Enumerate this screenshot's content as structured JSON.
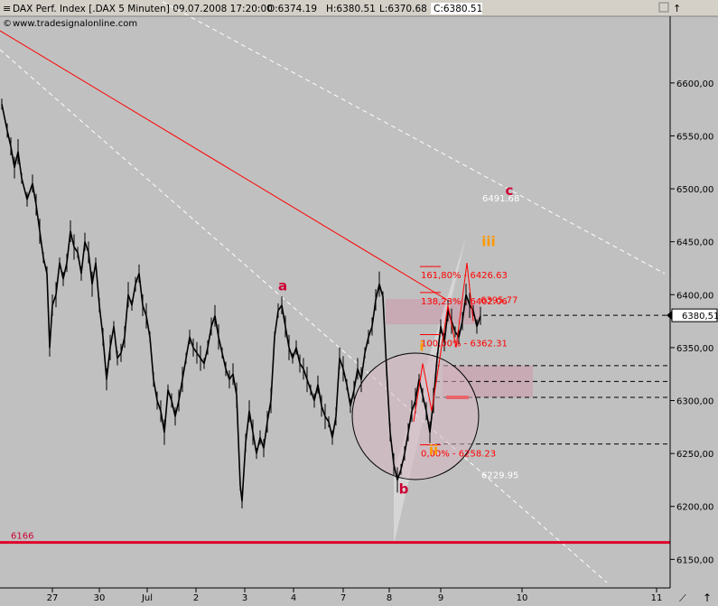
{
  "header": {
    "title": "DAX Perf. Index [.DAX  5 Minuten] 09.07.2008 17:20:00",
    "open": "O:6374.19",
    "high": "H:6380.51",
    "low": "L:6370.68",
    "close": "C:6380.51",
    "copyright": "www.tradesignalonline.com",
    "menu_glyph": "≡"
  },
  "colors": {
    "background": "#c0c0c0",
    "candle": "#000000",
    "red": "#ff0000",
    "label_red": "#cc0033",
    "label_orange": "#ff9900",
    "white": "#ffffff",
    "zone": "#c8a6b0"
  },
  "chart_data": {
    "type": "line",
    "title": "DAX Perf. Index [.DAX  5 Minuten]",
    "y_ticks": [
      6150,
      6200,
      6250,
      6300,
      6350,
      6400,
      6450,
      6500,
      6550,
      6600
    ],
    "y_tick_labels": [
      "6150,00",
      "6200,00",
      "6250,00",
      "6300,00",
      "6350,00",
      "6400,00",
      "6450,00",
      "6500,00",
      "6550,00",
      "6600,00"
    ],
    "ylim": [
      6123,
      6663
    ],
    "x_ticks": [
      {
        "label": "27",
        "x": 58
      },
      {
        "label": "30",
        "x": 110
      },
      {
        "label": "Jul",
        "x": 163
      },
      {
        "label": "2",
        "x": 217
      },
      {
        "label": "3",
        "x": 271
      },
      {
        "label": "4",
        "x": 325
      },
      {
        "label": "7",
        "x": 380
      },
      {
        "label": "8",
        "x": 431
      },
      {
        "label": "9",
        "x": 488
      },
      {
        "label": "10",
        "x": 578
      },
      {
        "label": "11",
        "x": 727
      }
    ],
    "xlim": [
      0,
      740
    ],
    "last_price": "6380,51",
    "price_path": [
      [
        2,
        6580
      ],
      [
        8,
        6555
      ],
      [
        12,
        6540
      ],
      [
        16,
        6520
      ],
      [
        20,
        6535
      ],
      [
        24,
        6510
      ],
      [
        30,
        6490
      ],
      [
        36,
        6505
      ],
      [
        40,
        6485
      ],
      [
        44,
        6460
      ],
      [
        48,
        6435
      ],
      [
        52,
        6420
      ],
      [
        55,
        6350
      ],
      [
        58,
        6390
      ],
      [
        62,
        6400
      ],
      [
        66,
        6430
      ],
      [
        70,
        6415
      ],
      [
        74,
        6430
      ],
      [
        78,
        6460
      ],
      [
        82,
        6445
      ],
      [
        86,
        6440
      ],
      [
        90,
        6420
      ],
      [
        94,
        6450
      ],
      [
        98,
        6440
      ],
      [
        102,
        6410
      ],
      [
        106,
        6430
      ],
      [
        110,
        6390
      ],
      [
        114,
        6360
      ],
      [
        118,
        6320
      ],
      [
        122,
        6350
      ],
      [
        126,
        6370
      ],
      [
        130,
        6340
      ],
      [
        134,
        6345
      ],
      [
        138,
        6360
      ],
      [
        142,
        6400
      ],
      [
        146,
        6390
      ],
      [
        150,
        6410
      ],
      [
        154,
        6420
      ],
      [
        158,
        6390
      ],
      [
        162,
        6380
      ],
      [
        166,
        6360
      ],
      [
        170,
        6320
      ],
      [
        174,
        6300
      ],
      [
        178,
        6290
      ],
      [
        182,
        6270
      ],
      [
        186,
        6310
      ],
      [
        190,
        6300
      ],
      [
        194,
        6285
      ],
      [
        198,
        6300
      ],
      [
        202,
        6320
      ],
      [
        206,
        6340
      ],
      [
        210,
        6360
      ],
      [
        214,
        6350
      ],
      [
        218,
        6345
      ],
      [
        222,
        6340
      ],
      [
        226,
        6335
      ],
      [
        230,
        6350
      ],
      [
        234,
        6370
      ],
      [
        238,
        6380
      ],
      [
        242,
        6360
      ],
      [
        246,
        6345
      ],
      [
        250,
        6330
      ],
      [
        254,
        6320
      ],
      [
        258,
        6325
      ],
      [
        262,
        6305
      ],
      [
        266,
        6220
      ],
      [
        268,
        6205
      ],
      [
        272,
        6260
      ],
      [
        276,
        6290
      ],
      [
        280,
        6270
      ],
      [
        284,
        6250
      ],
      [
        288,
        6265
      ],
      [
        292,
        6255
      ],
      [
        296,
        6280
      ],
      [
        300,
        6300
      ],
      [
        304,
        6360
      ],
      [
        308,
        6385
      ],
      [
        312,
        6390
      ],
      [
        316,
        6370
      ],
      [
        320,
        6350
      ],
      [
        324,
        6340
      ],
      [
        328,
        6350
      ],
      [
        332,
        6335
      ],
      [
        336,
        6330
      ],
      [
        340,
        6320
      ],
      [
        344,
        6310
      ],
      [
        348,
        6300
      ],
      [
        352,
        6315
      ],
      [
        356,
        6295
      ],
      [
        360,
        6285
      ],
      [
        364,
        6280
      ],
      [
        368,
        6265
      ],
      [
        372,
        6285
      ],
      [
        376,
        6340
      ],
      [
        380,
        6330
      ],
      [
        384,
        6315
      ],
      [
        388,
        6295
      ],
      [
        392,
        6310
      ],
      [
        396,
        6330
      ],
      [
        400,
        6320
      ],
      [
        404,
        6345
      ],
      [
        408,
        6360
      ],
      [
        412,
        6370
      ],
      [
        416,
        6395
      ],
      [
        420,
        6410
      ],
      [
        424,
        6398
      ],
      [
        428,
        6330
      ],
      [
        432,
        6270
      ],
      [
        436,
        6240
      ],
      [
        440,
        6225
      ],
      [
        444,
        6235
      ],
      [
        448,
        6250
      ],
      [
        452,
        6270
      ],
      [
        456,
        6290
      ],
      [
        460,
        6300
      ],
      [
        464,
        6320
      ],
      [
        468,
        6305
      ],
      [
        472,
        6290
      ],
      [
        476,
        6270
      ],
      [
        480,
        6300
      ],
      [
        484,
        6340
      ],
      [
        488,
        6370
      ],
      [
        492,
        6355
      ],
      [
        496,
        6385
      ],
      [
        500,
        6375
      ],
      [
        504,
        6365
      ],
      [
        508,
        6360
      ],
      [
        512,
        6375
      ],
      [
        516,
        6400
      ],
      [
        520,
        6390
      ],
      [
        524,
        6385
      ],
      [
        528,
        6370
      ],
      [
        532,
        6380
      ]
    ],
    "level_line": {
      "value": 6166,
      "label": "6166"
    },
    "fib_levels": [
      {
        "label": "161,80% - 6426.63",
        "value": 6426.63
      },
      {
        "label": "138,23% - 6402.06",
        "value": 6402.06
      },
      {
        "label": "100,00% - 6362.31",
        "value": 6362.31
      },
      {
        "label": "0,00% - 6258.23",
        "value": 6258.23
      }
    ],
    "dashed_levels": [
      6380.51,
      6333,
      6318,
      6303,
      6259
    ],
    "price_labels": [
      {
        "label": "6491.68",
        "value": 6491.68
      },
      {
        "label": "6395.77",
        "value": 6395.77
      },
      {
        "label": "6229.95",
        "value": 6229.95
      }
    ],
    "wave_labels": [
      {
        "label": "a",
        "x": 313,
        "value": 6404,
        "color": "label_red"
      },
      {
        "label": "b",
        "x": 447,
        "value": 6212,
        "color": "label_red"
      },
      {
        "label": "c",
        "x": 564,
        "value": 6494,
        "color": "label_red"
      },
      {
        "label": "i",
        "x": 467,
        "value": 6347,
        "color": "label_orange"
      },
      {
        "label": "ii",
        "x": 480,
        "value": 6249,
        "color": "label_orange"
      },
      {
        "label": "iii",
        "x": 541,
        "value": 6446,
        "color": "label_orange"
      }
    ]
  }
}
